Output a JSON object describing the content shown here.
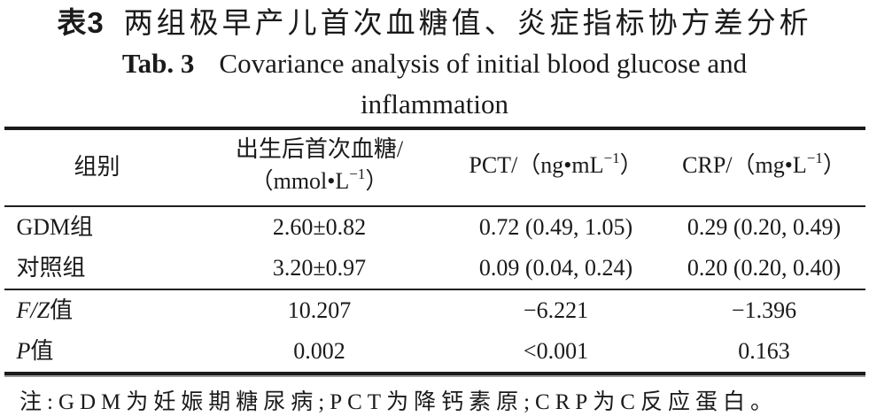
{
  "page": {
    "title_zh_label": "表3",
    "title_zh_text": "两组极早产儿首次血糖值、炎症指标协方差分析",
    "title_en_label": "Tab. 3",
    "title_en_line1": "Covariance analysis of initial blood glucose and",
    "title_en_line2": "inflammation"
  },
  "table": {
    "header": {
      "group": "组别",
      "glucose_line1": "出生后首次血糖/",
      "glucose_unit_pre": "（mmol•L",
      "glucose_unit_sup": "−1",
      "glucose_unit_post": "）",
      "pct_pre": "PCT/（ng•mL",
      "pct_sup": "−1",
      "pct_post": "）",
      "crp_pre": "CRP/（mg•L",
      "crp_sup": "−1",
      "crp_post": "）"
    },
    "rows": [
      {
        "label": "GDM组",
        "glucose": "2.60±0.82",
        "pct": "0.72 (0.49, 1.05)",
        "crp": "0.29 (0.20, 0.49)"
      },
      {
        "label": "对照组",
        "glucose": "3.20±0.97",
        "pct": "0.09 (0.04, 0.24)",
        "crp": "0.20 (0.20, 0.40)"
      }
    ],
    "stat_rows": [
      {
        "label_italic": "F/Z",
        "label_suffix": "值",
        "glucose": "10.207",
        "pct": "−6.221",
        "crp": "−1.396"
      },
      {
        "label_italic": "P",
        "label_suffix": "值",
        "glucose": "0.002",
        "pct": "<0.001",
        "crp": "0.163"
      }
    ]
  },
  "footnote": "注:GDM为妊娠期糖尿病;PCT为降钙素原;CRP为C反应蛋白。"
}
